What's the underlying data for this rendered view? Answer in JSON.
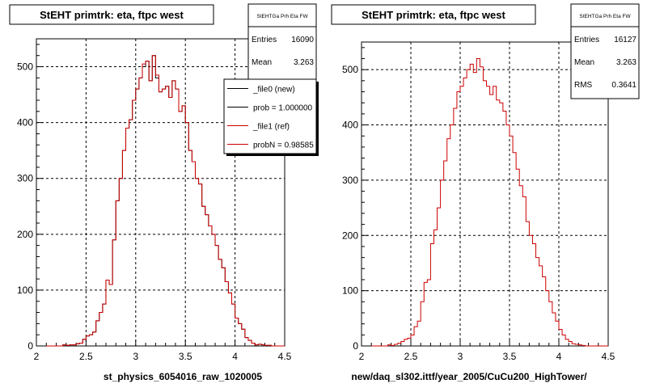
{
  "footer_text": "",
  "chart_data": [
    {
      "type": "histogram",
      "title": "StEHT primtrk: eta, ftpc west",
      "xlabel": "st_physics_6054016_raw_1020005",
      "ylabel": "",
      "xlim": [
        2,
        4.5
      ],
      "ylim": [
        0,
        550
      ],
      "xticks": [
        "2",
        "2.5",
        "3",
        "3.5",
        "4",
        "4.5"
      ],
      "yticks": [
        "0",
        "100",
        "200",
        "300",
        "400",
        "500"
      ],
      "grid": true,
      "stats": {
        "title": "StEHTGa Prh Eta FW",
        "rows": [
          {
            "label": "Entries",
            "value": "16090"
          },
          {
            "label": "Mean",
            "value": "3.263"
          }
        ]
      },
      "legend": {
        "placement": "top-right",
        "entries": [
          {
            "label": "_file0 (new)",
            "color": "#000000"
          },
          {
            "label": "prob = 1.000000",
            "color": "#000000"
          },
          {
            "label": "_file1 (ref)",
            "color": "#cc0000"
          },
          {
            "label": "probN = 0.98585",
            "color": "#cc0000"
          }
        ]
      },
      "bin_edges": [
        2.1,
        4.5
      ],
      "series": [
        {
          "name": "_file0 (new)",
          "color": "#000000",
          "values": [
            0,
            0,
            0,
            0,
            0,
            2,
            1,
            2,
            2,
            4,
            5,
            12,
            18,
            20,
            25,
            45,
            60,
            75,
            118,
            110,
            190,
            260,
            300,
            350,
            390,
            405,
            440,
            460,
            480,
            500,
            510,
            475,
            520,
            480,
            455,
            460,
            465,
            445,
            475,
            460,
            420,
            430,
            400,
            350,
            330,
            300,
            290,
            250,
            235,
            215,
            200,
            180,
            155,
            140,
            115,
            95,
            75,
            50,
            40,
            30,
            15,
            10,
            5,
            2,
            3,
            2,
            1,
            1,
            0,
            0,
            0,
            0
          ]
        },
        {
          "name": "_file1 (ref)",
          "color": "#cc0000",
          "values": [
            0,
            0,
            0,
            0,
            0,
            2,
            1,
            2,
            2,
            4,
            5,
            12,
            18,
            20,
            25,
            45,
            60,
            75,
            118,
            110,
            190,
            260,
            300,
            350,
            390,
            405,
            440,
            460,
            480,
            505,
            510,
            475,
            520,
            485,
            455,
            460,
            465,
            445,
            475,
            460,
            420,
            430,
            400,
            350,
            330,
            300,
            290,
            250,
            235,
            215,
            200,
            180,
            155,
            140,
            115,
            95,
            75,
            50,
            40,
            30,
            15,
            10,
            5,
            2,
            3,
            2,
            1,
            1,
            0,
            0,
            0,
            0
          ]
        }
      ]
    },
    {
      "type": "histogram",
      "title": "StEHT primtrk: eta, ftpc west",
      "xlabel": "new/daq_sl302.ittf/year_2005/CuCu200_HighTower/",
      "ylabel": "",
      "xlim": [
        2,
        4.5
      ],
      "ylim": [
        0,
        550
      ],
      "xticks": [
        "2",
        "2.5",
        "3",
        "3.5",
        "4",
        "4.5"
      ],
      "yticks": [
        "0",
        "100",
        "200",
        "300",
        "400",
        "500"
      ],
      "grid": true,
      "stats": {
        "title": "StEHTGa Prh Eta FW",
        "rows": [
          {
            "label": "Entries",
            "value": "16127"
          },
          {
            "label": "Mean",
            "value": "3.263"
          },
          {
            "label": "RMS",
            "value": "0.3641"
          }
        ]
      },
      "bin_edges": [
        2.1,
        4.5
      ],
      "series": [
        {
          "name": "",
          "color": "#cc0000",
          "values": [
            0,
            0,
            0,
            0,
            0,
            2,
            1,
            3,
            5,
            8,
            12,
            14,
            20,
            35,
            45,
            80,
            115,
            120,
            185,
            210,
            250,
            300,
            335,
            375,
            400,
            430,
            460,
            470,
            485,
            500,
            510,
            495,
            520,
            505,
            480,
            470,
            455,
            470,
            445,
            440,
            425,
            400,
            380,
            350,
            320,
            290,
            270,
            225,
            200,
            185,
            160,
            145,
            125,
            100,
            80,
            60,
            45,
            30,
            20,
            12,
            8,
            4,
            3,
            2,
            1,
            0,
            0,
            0,
            0,
            0,
            0,
            0
          ]
        }
      ]
    }
  ]
}
